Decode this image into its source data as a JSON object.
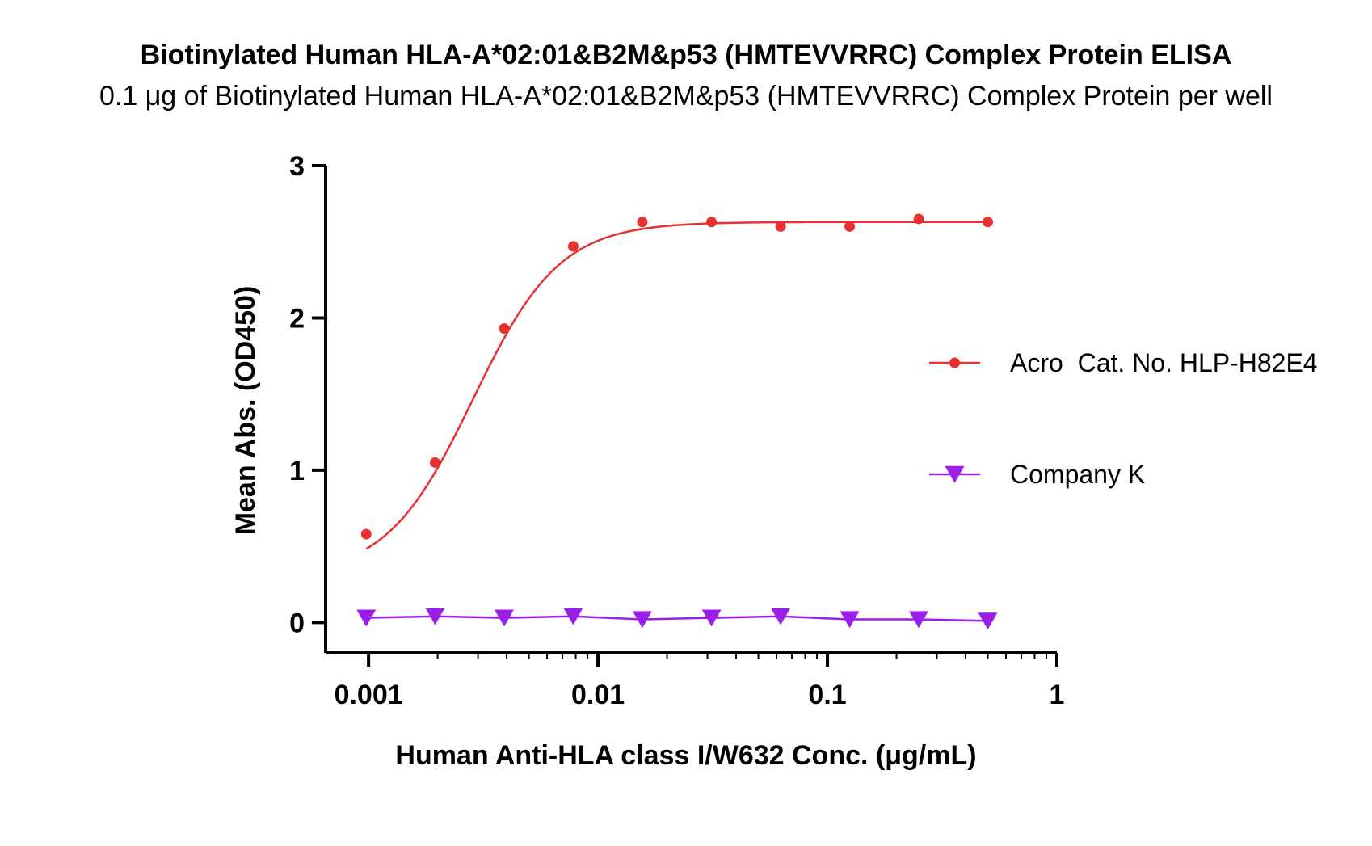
{
  "chart_data": {
    "type": "line",
    "title": "Biotinylated Human HLA-A*02:01&B2M&p53 (HMTEVVRRC) Complex Protein ELISA",
    "subtitle": "0.1 μg of Biotinylated Human HLA-A*02:01&B2M&p53 (HMTEVVRRC) Complex Protein per well",
    "xlabel": "Human Anti-HLA class I/W632 Conc. (μg/mL)",
    "ylabel": "Mean Abs. (OD450)",
    "xscale": "log",
    "xlim": [
      0.00065,
      1
    ],
    "ylim": [
      -0.2,
      3
    ],
    "x_ticks": [
      0.001,
      0.01,
      0.1,
      1
    ],
    "x_tick_labels": [
      "0.001",
      "0.01",
      "0.1",
      "1"
    ],
    "y_ticks": [
      0,
      1,
      2,
      3
    ],
    "y_tick_labels": [
      "0",
      "1",
      "2",
      "3"
    ],
    "legend_position": "right",
    "series": [
      {
        "name": "Acro  Cat. No. HLP-H82E4",
        "color": "#e83030",
        "marker": "circle",
        "fit": "4pl",
        "fit_params": {
          "bottom": 0.3,
          "top": 2.63,
          "ec50": 0.00285,
          "hill": 2.3
        },
        "x": [
          0.000977,
          0.00195,
          0.0039,
          0.0078,
          0.0156,
          0.03125,
          0.0625,
          0.125,
          0.25,
          0.5
        ],
        "values": [
          0.58,
          1.05,
          1.93,
          2.47,
          2.63,
          2.63,
          2.6,
          2.6,
          2.65,
          2.63
        ]
      },
      {
        "name": "Company K",
        "color": "#9b1fe8",
        "marker": "triangle-down",
        "fit": "line",
        "x": [
          0.000977,
          0.00195,
          0.0039,
          0.0078,
          0.0156,
          0.03125,
          0.0625,
          0.125,
          0.25,
          0.5
        ],
        "values": [
          0.03,
          0.04,
          0.03,
          0.04,
          0.02,
          0.03,
          0.04,
          0.02,
          0.02,
          0.01
        ]
      }
    ]
  }
}
